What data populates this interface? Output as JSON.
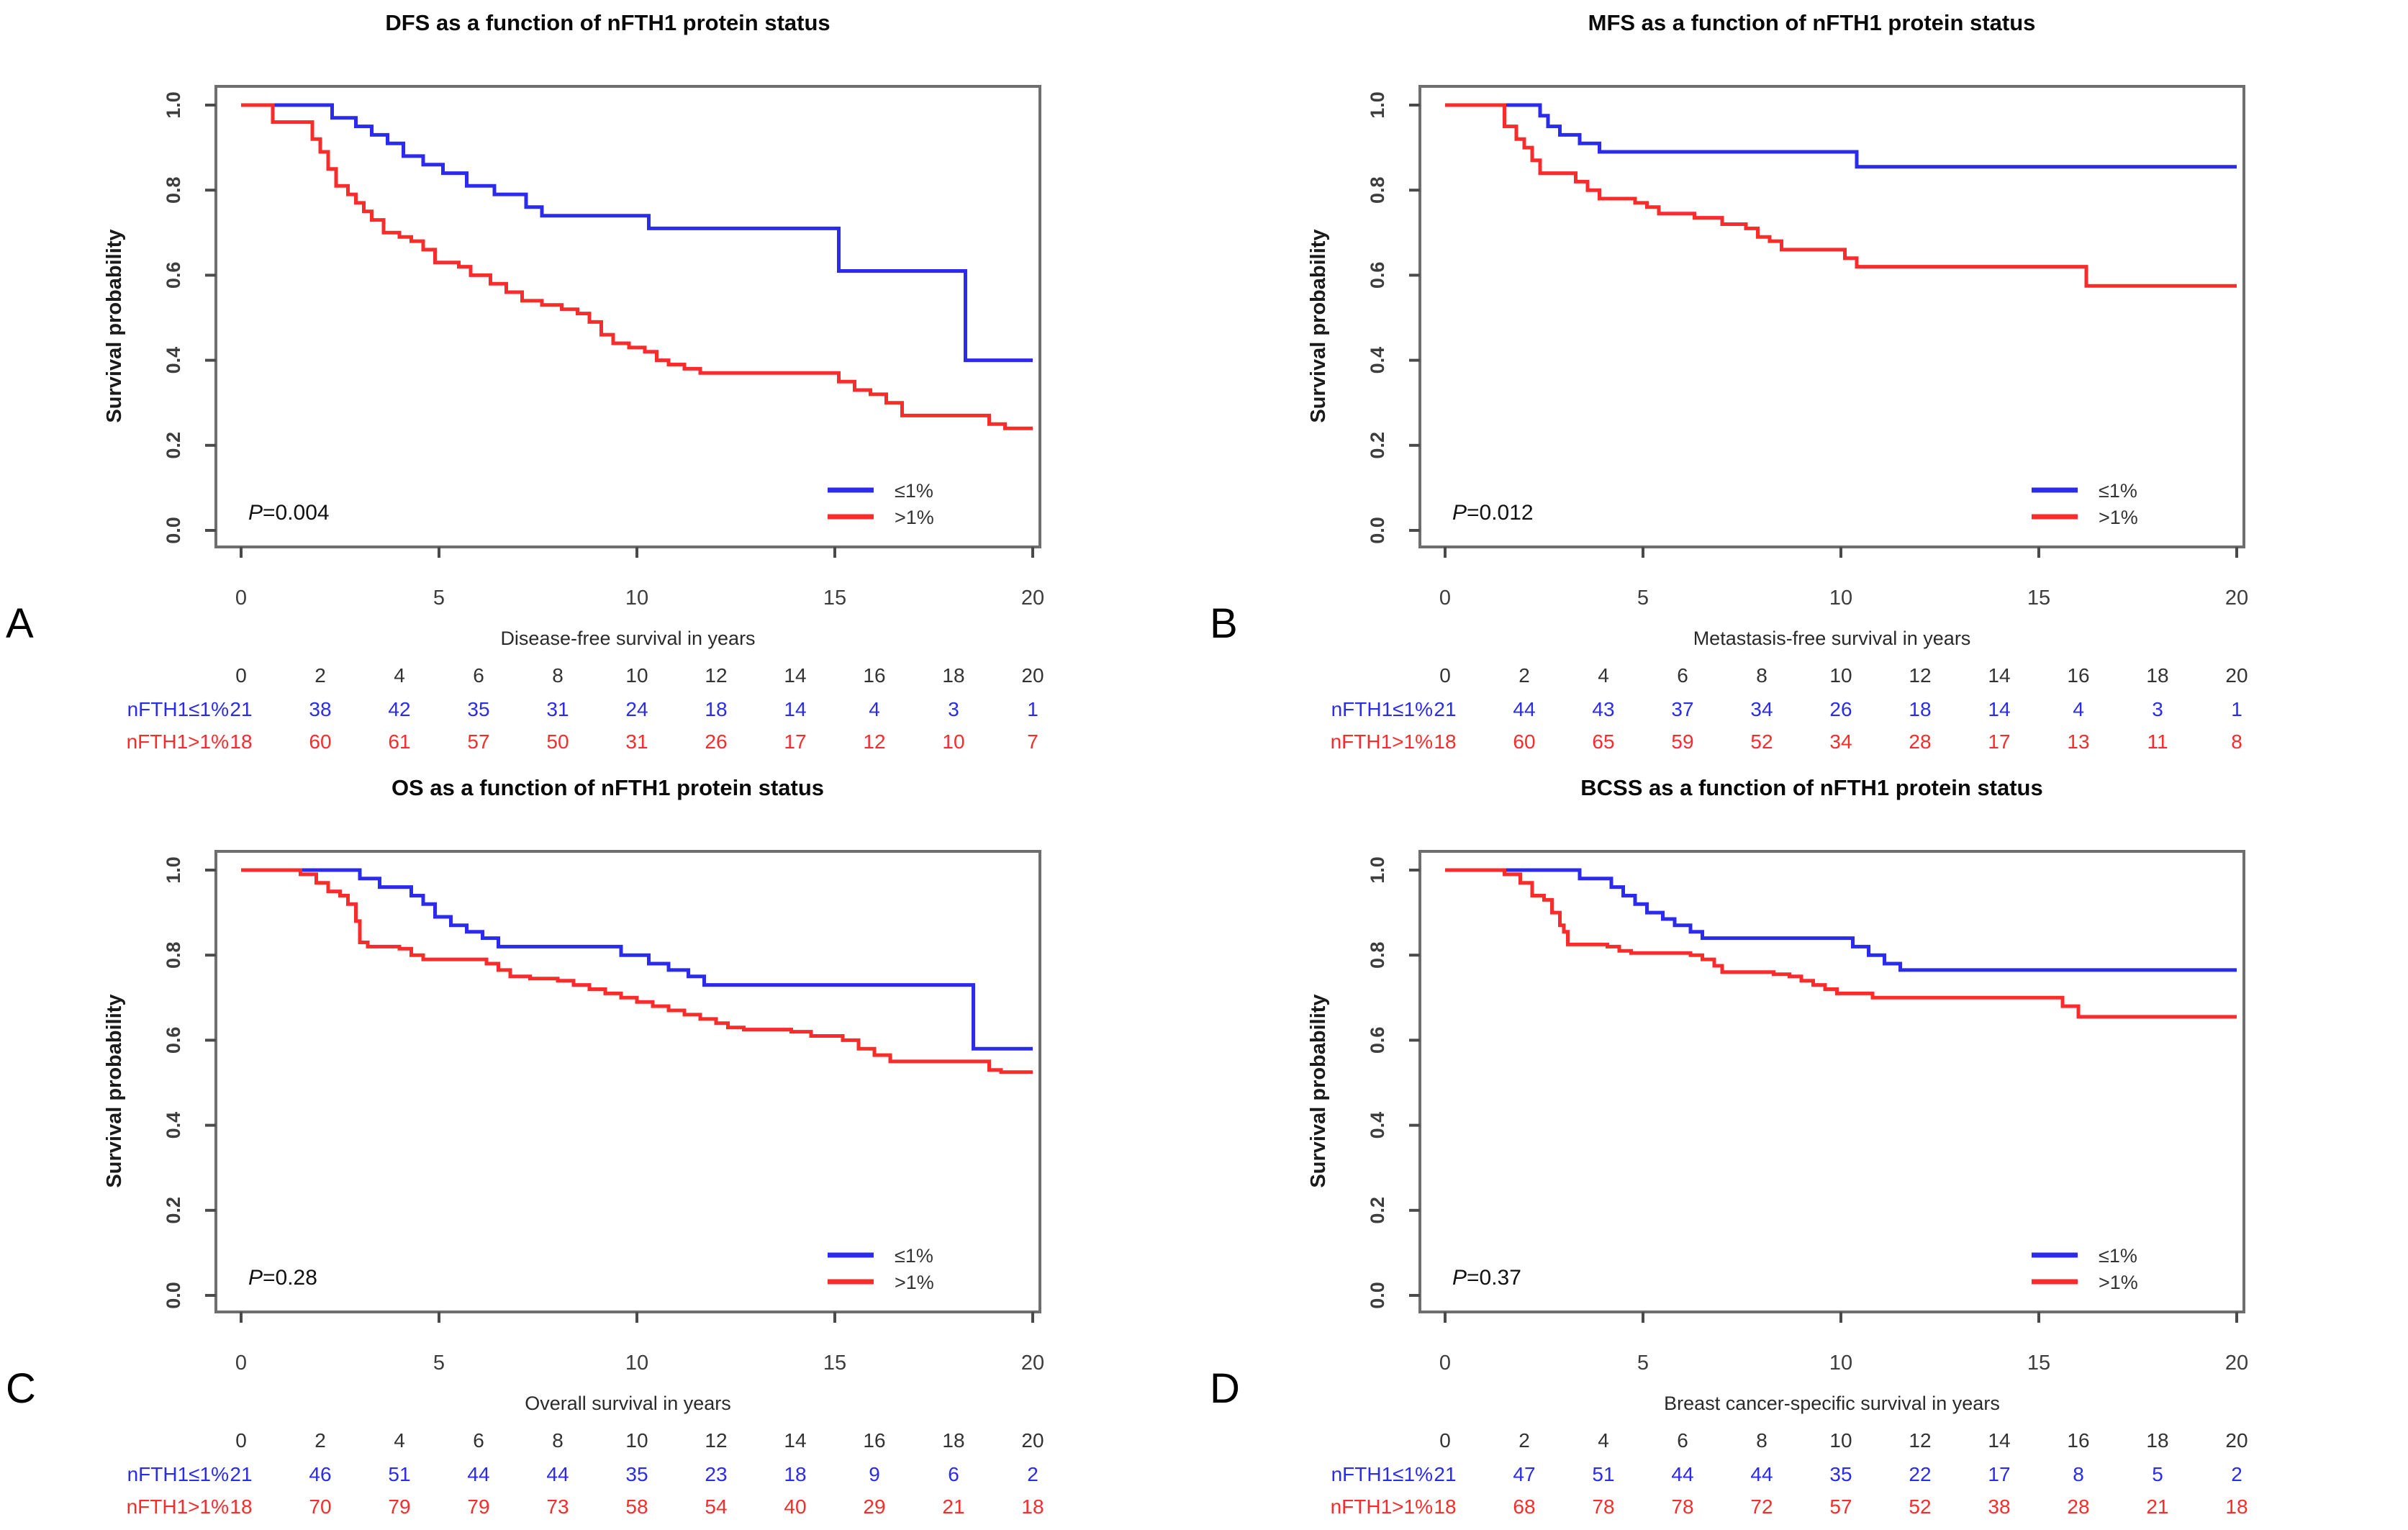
{
  "figure": {
    "colors": {
      "group_le1": "#2b2bee",
      "group_gt1": "#f92c2c",
      "axis": "#6e6e6e",
      "tick": "#4a4a4a"
    },
    "y_axis": {
      "label": "Survival probability",
      "tick_labels": [
        "0.0",
        "0.2",
        "0.4",
        "0.6",
        "0.8",
        "1.0"
      ],
      "tick_values": [
        0,
        0.2,
        0.4,
        0.6,
        0.8,
        1
      ]
    },
    "x_axis": {
      "tick_values": [
        0,
        5,
        10,
        15,
        20
      ]
    },
    "risk_years": [
      0,
      2,
      4,
      6,
      8,
      10,
      12,
      14,
      16,
      18,
      20
    ],
    "legend": [
      {
        "label": "≤1%",
        "color_key": "group_le1"
      },
      {
        "label": ">1%",
        "color_key": "group_gt1"
      }
    ]
  },
  "chart_data": [
    {
      "letter": "A",
      "type": "line",
      "title": "DFS as a function of nFTH1 protein status",
      "xlabel": "Disease-free survival in years",
      "ylabel": "Survival probability",
      "p_value": "P=0.004",
      "xlim": [
        0,
        20
      ],
      "ylim": [
        0,
        1
      ],
      "legend_position": "bottom-right",
      "series": [
        {
          "name": "nFTH1≤1%",
          "group": "group_le1",
          "steps": [
            [
              0,
              1
            ],
            [
              2.3,
              0.97
            ],
            [
              2.9,
              0.95
            ],
            [
              3.3,
              0.93
            ],
            [
              3.7,
              0.91
            ],
            [
              4.1,
              0.88
            ],
            [
              4.6,
              0.86
            ],
            [
              5.1,
              0.84
            ],
            [
              5.7,
              0.81
            ],
            [
              6.4,
              0.79
            ],
            [
              7.2,
              0.76
            ],
            [
              7.6,
              0.74
            ],
            [
              10.3,
              0.71
            ],
            [
              15.1,
              0.61
            ],
            [
              18.3,
              0.4
            ],
            [
              20,
              0.4
            ]
          ]
        },
        {
          "name": "nFTH1>1%",
          "group": "group_gt1",
          "steps": [
            [
              0,
              1
            ],
            [
              0.8,
              0.96
            ],
            [
              1.8,
              0.92
            ],
            [
              2.0,
              0.89
            ],
            [
              2.2,
              0.85
            ],
            [
              2.4,
              0.81
            ],
            [
              2.7,
              0.79
            ],
            [
              2.9,
              0.77
            ],
            [
              3.1,
              0.75
            ],
            [
              3.3,
              0.73
            ],
            [
              3.6,
              0.7
            ],
            [
              4.0,
              0.69
            ],
            [
              4.3,
              0.68
            ],
            [
              4.6,
              0.66
            ],
            [
              4.9,
              0.63
            ],
            [
              5.5,
              0.62
            ],
            [
              5.8,
              0.6
            ],
            [
              6.3,
              0.58
            ],
            [
              6.7,
              0.56
            ],
            [
              7.1,
              0.54
            ],
            [
              7.6,
              0.53
            ],
            [
              8.1,
              0.52
            ],
            [
              8.5,
              0.51
            ],
            [
              8.8,
              0.49
            ],
            [
              9.1,
              0.46
            ],
            [
              9.4,
              0.44
            ],
            [
              9.8,
              0.43
            ],
            [
              10.2,
              0.42
            ],
            [
              10.5,
              0.4
            ],
            [
              10.8,
              0.39
            ],
            [
              11.2,
              0.38
            ],
            [
              11.6,
              0.37
            ],
            [
              15.1,
              0.35
            ],
            [
              15.5,
              0.33
            ],
            [
              15.9,
              0.32
            ],
            [
              16.3,
              0.3
            ],
            [
              16.7,
              0.27
            ],
            [
              18.9,
              0.25
            ],
            [
              19.3,
              0.24
            ],
            [
              20,
              0.24
            ]
          ]
        }
      ],
      "risk_table": {
        "rows": [
          {
            "label": "nFTH1≤1%",
            "group": "group_le1",
            "counts": [
              21,
              38,
              42,
              35,
              31,
              24,
              18,
              14,
              4,
              3,
              1
            ]
          },
          {
            "label": "nFTH1>1%",
            "group": "group_gt1",
            "counts": [
              18,
              60,
              61,
              57,
              50,
              31,
              26,
              17,
              12,
              10,
              7
            ]
          }
        ]
      }
    },
    {
      "letter": "B",
      "type": "line",
      "title": "MFS as a function of nFTH1 protein status",
      "xlabel": "Metastasis-free survival in years",
      "ylabel": "Survival probability",
      "p_value": "P=0.012",
      "xlim": [
        0,
        20
      ],
      "ylim": [
        0,
        1
      ],
      "legend_position": "bottom-right",
      "series": [
        {
          "name": "nFTH1≤1%",
          "group": "group_le1",
          "steps": [
            [
              0,
              1
            ],
            [
              2.4,
              0.975
            ],
            [
              2.6,
              0.95
            ],
            [
              2.9,
              0.93
            ],
            [
              3.4,
              0.91
            ],
            [
              3.9,
              0.89
            ],
            [
              10.4,
              0.855
            ],
            [
              20,
              0.855
            ]
          ]
        },
        {
          "name": "nFTH1>1%",
          "group": "group_gt1",
          "steps": [
            [
              0,
              1
            ],
            [
              1.5,
              0.95
            ],
            [
              1.8,
              0.92
            ],
            [
              2.0,
              0.9
            ],
            [
              2.2,
              0.87
            ],
            [
              2.4,
              0.84
            ],
            [
              3.3,
              0.82
            ],
            [
              3.6,
              0.8
            ],
            [
              3.9,
              0.78
            ],
            [
              4.8,
              0.77
            ],
            [
              5.1,
              0.76
            ],
            [
              5.4,
              0.745
            ],
            [
              6.3,
              0.735
            ],
            [
              7.0,
              0.72
            ],
            [
              7.6,
              0.71
            ],
            [
              7.9,
              0.69
            ],
            [
              8.2,
              0.68
            ],
            [
              8.5,
              0.66
            ],
            [
              10.1,
              0.64
            ],
            [
              10.4,
              0.62
            ],
            [
              16.2,
              0.575
            ],
            [
              20,
              0.575
            ]
          ]
        }
      ],
      "risk_table": {
        "rows": [
          {
            "label": "nFTH1≤1%",
            "group": "group_le1",
            "counts": [
              21,
              44,
              43,
              37,
              34,
              26,
              18,
              14,
              4,
              3,
              1
            ]
          },
          {
            "label": "nFTH1>1%",
            "group": "group_gt1",
            "counts": [
              18,
              60,
              65,
              59,
              52,
              34,
              28,
              17,
              13,
              11,
              8
            ]
          }
        ]
      }
    },
    {
      "letter": "C",
      "type": "line",
      "title": "OS as a function of nFTH1 protein status",
      "xlabel": "Overall survival in years",
      "ylabel": "Survival probability",
      "p_value": "P=0.28",
      "xlim": [
        0,
        20
      ],
      "ylim": [
        0,
        1
      ],
      "legend_position": "bottom-right",
      "series": [
        {
          "name": "nFTH1≤1%",
          "group": "group_le1",
          "steps": [
            [
              0,
              1
            ],
            [
              3.0,
              0.98
            ],
            [
              3.5,
              0.96
            ],
            [
              4.3,
              0.94
            ],
            [
              4.6,
              0.92
            ],
            [
              4.9,
              0.89
            ],
            [
              5.3,
              0.87
            ],
            [
              5.7,
              0.855
            ],
            [
              6.1,
              0.84
            ],
            [
              6.5,
              0.82
            ],
            [
              9.6,
              0.8
            ],
            [
              10.3,
              0.78
            ],
            [
              10.8,
              0.765
            ],
            [
              11.3,
              0.75
            ],
            [
              11.7,
              0.73
            ],
            [
              18.5,
              0.58
            ],
            [
              20,
              0.58
            ]
          ]
        },
        {
          "name": "nFTH1>1%",
          "group": "group_gt1",
          "steps": [
            [
              0,
              1
            ],
            [
              1.5,
              0.99
            ],
            [
              1.9,
              0.97
            ],
            [
              2.2,
              0.95
            ],
            [
              2.5,
              0.94
            ],
            [
              2.7,
              0.92
            ],
            [
              2.9,
              0.88
            ],
            [
              3.0,
              0.83
            ],
            [
              3.2,
              0.82
            ],
            [
              4.0,
              0.815
            ],
            [
              4.3,
              0.8
            ],
            [
              4.6,
              0.79
            ],
            [
              6.2,
              0.78
            ],
            [
              6.5,
              0.765
            ],
            [
              6.8,
              0.75
            ],
            [
              7.3,
              0.745
            ],
            [
              8.0,
              0.74
            ],
            [
              8.4,
              0.73
            ],
            [
              8.8,
              0.72
            ],
            [
              9.2,
              0.71
            ],
            [
              9.6,
              0.7
            ],
            [
              10.0,
              0.69
            ],
            [
              10.4,
              0.68
            ],
            [
              10.8,
              0.67
            ],
            [
              11.2,
              0.66
            ],
            [
              11.6,
              0.65
            ],
            [
              12.0,
              0.64
            ],
            [
              12.3,
              0.63
            ],
            [
              12.7,
              0.625
            ],
            [
              13.9,
              0.62
            ],
            [
              14.4,
              0.61
            ],
            [
              15.2,
              0.6
            ],
            [
              15.6,
              0.58
            ],
            [
              16.0,
              0.565
            ],
            [
              16.4,
              0.55
            ],
            [
              18.9,
              0.53
            ],
            [
              19.2,
              0.525
            ],
            [
              20,
              0.525
            ]
          ]
        }
      ],
      "risk_table": {
        "rows": [
          {
            "label": "nFTH1≤1%",
            "group": "group_le1",
            "counts": [
              21,
              46,
              51,
              44,
              44,
              35,
              23,
              18,
              9,
              6,
              2
            ]
          },
          {
            "label": "nFTH1>1%",
            "group": "group_gt1",
            "counts": [
              18,
              70,
              79,
              79,
              73,
              58,
              54,
              40,
              29,
              21,
              18
            ]
          }
        ]
      }
    },
    {
      "letter": "D",
      "type": "line",
      "title": "BCSS as a function of nFTH1 protein status",
      "xlabel": "Breast cancer-specific survival in years",
      "ylabel": "Survival probability",
      "p_value": "P=0.37",
      "xlim": [
        0,
        20
      ],
      "ylim": [
        0,
        1
      ],
      "legend_position": "bottom-right",
      "series": [
        {
          "name": "nFTH1≤1%",
          "group": "group_le1",
          "steps": [
            [
              0,
              1
            ],
            [
              3.4,
              0.98
            ],
            [
              4.2,
              0.96
            ],
            [
              4.5,
              0.94
            ],
            [
              4.8,
              0.92
            ],
            [
              5.1,
              0.9
            ],
            [
              5.5,
              0.885
            ],
            [
              5.8,
              0.87
            ],
            [
              6.2,
              0.855
            ],
            [
              6.5,
              0.84
            ],
            [
              10.3,
              0.82
            ],
            [
              10.7,
              0.8
            ],
            [
              11.1,
              0.78
            ],
            [
              11.5,
              0.765
            ],
            [
              20,
              0.765
            ]
          ]
        },
        {
          "name": "nFTH1>1%",
          "group": "group_gt1",
          "steps": [
            [
              0,
              1
            ],
            [
              1.5,
              0.99
            ],
            [
              1.9,
              0.97
            ],
            [
              2.2,
              0.94
            ],
            [
              2.5,
              0.93
            ],
            [
              2.7,
              0.9
            ],
            [
              2.9,
              0.87
            ],
            [
              3.0,
              0.855
            ],
            [
              3.1,
              0.825
            ],
            [
              4.1,
              0.82
            ],
            [
              4.4,
              0.81
            ],
            [
              4.7,
              0.805
            ],
            [
              6.2,
              0.8
            ],
            [
              6.5,
              0.79
            ],
            [
              6.8,
              0.775
            ],
            [
              7.0,
              0.76
            ],
            [
              8.3,
              0.755
            ],
            [
              8.7,
              0.75
            ],
            [
              9.0,
              0.74
            ],
            [
              9.3,
              0.73
            ],
            [
              9.6,
              0.72
            ],
            [
              9.9,
              0.71
            ],
            [
              10.8,
              0.7
            ],
            [
              15.6,
              0.68
            ],
            [
              16.0,
              0.655
            ],
            [
              20,
              0.655
            ]
          ]
        }
      ],
      "risk_table": {
        "rows": [
          {
            "label": "nFTH1≤1%",
            "group": "group_le1",
            "counts": [
              21,
              47,
              51,
              44,
              44,
              35,
              22,
              17,
              8,
              5,
              2
            ]
          },
          {
            "label": "nFTH1>1%",
            "group": "group_gt1",
            "counts": [
              18,
              68,
              78,
              78,
              72,
              57,
              52,
              38,
              28,
              21,
              18
            ]
          }
        ]
      }
    }
  ]
}
